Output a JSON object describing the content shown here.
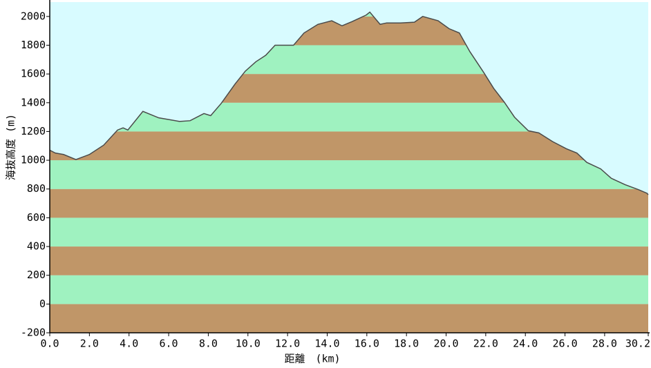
{
  "chart_data": {
    "type": "area",
    "x_label": "距離　(km)",
    "y_label": "海抜高度 (m)",
    "x": [
      0,
      0.28,
      0.7,
      1.32,
      2.0,
      2.72,
      3.42,
      3.7,
      3.94,
      4.7,
      5.5,
      6.55,
      7.08,
      7.78,
      8.12,
      8.65,
      9.35,
      9.87,
      10.4,
      10.9,
      11.37,
      12.3,
      12.83,
      13.53,
      14.23,
      14.75,
      15.27,
      15.97,
      16.15,
      16.67,
      17.0,
      17.7,
      18.4,
      18.82,
      19.6,
      20.15,
      20.67,
      21.2,
      21.9,
      22.4,
      22.93,
      23.45,
      24.15,
      24.68,
      25.37,
      26.07,
      26.6,
      27.1,
      27.8,
      28.33,
      29.03,
      29.72,
      30.14,
      30.2
    ],
    "values": [
      1070,
      1050,
      1040,
      1005,
      1040,
      1105,
      1210,
      1225,
      1210,
      1340,
      1295,
      1270,
      1275,
      1325,
      1310,
      1395,
      1530,
      1620,
      1685,
      1730,
      1800,
      1800,
      1885,
      1945,
      1970,
      1935,
      1965,
      2010,
      2030,
      1945,
      1955,
      1955,
      1960,
      2000,
      1970,
      1915,
      1885,
      1755,
      1610,
      1500,
      1405,
      1300,
      1205,
      1190,
      1130,
      1080,
      1050,
      985,
      940,
      875,
      830,
      795,
      770,
      760
    ],
    "color": "#4a4a4a",
    "sky_color": "#d8fbff",
    "band_colors": [
      "#c09668",
      "#9ff2c0"
    ],
    "xlim": [
      0,
      30.2
    ],
    "ylim": [
      -200,
      2100
    ],
    "xticks": [
      {
        "value": 0,
        "label": "0.0"
      },
      {
        "value": 2,
        "label": "2.0"
      },
      {
        "value": 4,
        "label": "4.0"
      },
      {
        "value": 6,
        "label": "6.0"
      },
      {
        "value": 8,
        "label": "8.0"
      },
      {
        "value": 10,
        "label": "10.0"
      },
      {
        "value": 12,
        "label": "12.0"
      },
      {
        "value": 14,
        "label": "14.0"
      },
      {
        "value": 16,
        "label": "16.0"
      },
      {
        "value": 18,
        "label": "18.0"
      },
      {
        "value": 20,
        "label": "20.0"
      },
      {
        "value": 22,
        "label": "22.0"
      },
      {
        "value": 24,
        "label": "24.0"
      },
      {
        "value": 26,
        "label": "26.0"
      },
      {
        "value": 28,
        "label": "28.0"
      },
      30.2
    ],
    "yticks": [
      -200,
      0,
      200,
      400,
      600,
      800,
      1000,
      1200,
      1400,
      1600,
      1800,
      2000
    ]
  }
}
